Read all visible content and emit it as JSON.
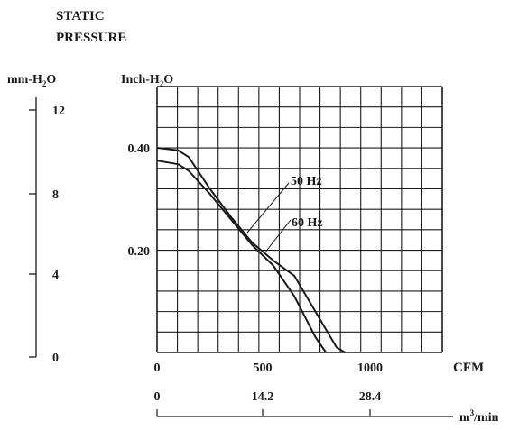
{
  "chart_data": {
    "type": "line",
    "title_lines": [
      "STATIC",
      "PRESSURE"
    ],
    "y_left_label": {
      "text": "mm-H",
      "sub": "2",
      "tail": "O"
    },
    "y_right_label": {
      "text": "Inch-H",
      "sub": "2",
      "tail": "O"
    },
    "x_label": "CFM",
    "x2_label": {
      "text": "m",
      "sup": "3",
      "tail": "/min"
    },
    "y_inch_ticks": [
      "0.40",
      "0.20"
    ],
    "y_mm_ticks": [
      "12",
      "8",
      "4",
      "0"
    ],
    "x_cfm_ticks": [
      "0",
      "500",
      "1000"
    ],
    "x_m3_ticks": [
      "0",
      "14.2",
      "28.4"
    ],
    "xlim_cfm": [
      0,
      1375
    ],
    "ylim_inch": [
      0,
      0.6
    ],
    "grid": true,
    "series": [
      {
        "name": "50 Hz",
        "x": [
          0,
          100,
          150,
          250,
          350,
          450,
          550,
          650,
          750,
          800
        ],
        "y": [
          0.375,
          0.368,
          0.355,
          0.31,
          0.26,
          0.21,
          0.17,
          0.11,
          0.03,
          0
        ]
      },
      {
        "name": "60 Hz",
        "x": [
          0,
          100,
          150,
          250,
          350,
          450,
          550,
          650,
          750,
          850,
          890
        ],
        "y": [
          0.4,
          0.395,
          0.382,
          0.32,
          0.265,
          0.215,
          0.18,
          0.15,
          0.08,
          0.01,
          0
        ]
      }
    ],
    "annotations": [
      "50 Hz",
      "60 Hz"
    ]
  }
}
